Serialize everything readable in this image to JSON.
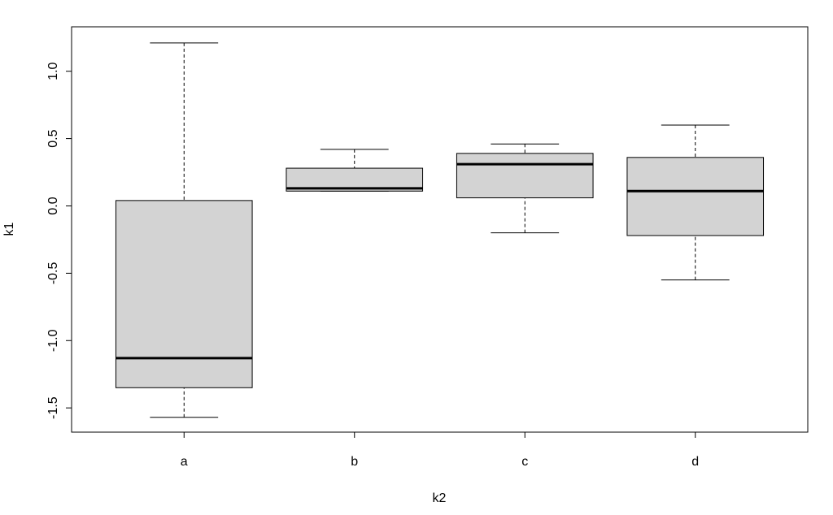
{
  "chart_data": {
    "type": "boxplot",
    "x_label": "k2",
    "y_label": "k1",
    "categories": [
      "a",
      "b",
      "c",
      "d"
    ],
    "min": [
      -1.57,
      0.11,
      -0.2,
      -0.55
    ],
    "q1": [
      -1.35,
      0.11,
      0.06,
      -0.22
    ],
    "median": [
      -1.13,
      0.13,
      0.31,
      0.11
    ],
    "q3": [
      0.04,
      0.28,
      0.39,
      0.36
    ],
    "max": [
      1.21,
      0.42,
      0.46,
      0.6
    ],
    "color": "#d3d3d3",
    "ylim": [
      -1.68,
      1.33
    ],
    "yticks": [
      {
        "value": -1.5,
        "label": "-1.5"
      },
      {
        "value": -1,
        "label": "-1.0"
      },
      -0.5,
      {
        "value": 0,
        "label": "0.0"
      },
      0.5,
      {
        "value": 1,
        "label": "1.0"
      }
    ]
  }
}
